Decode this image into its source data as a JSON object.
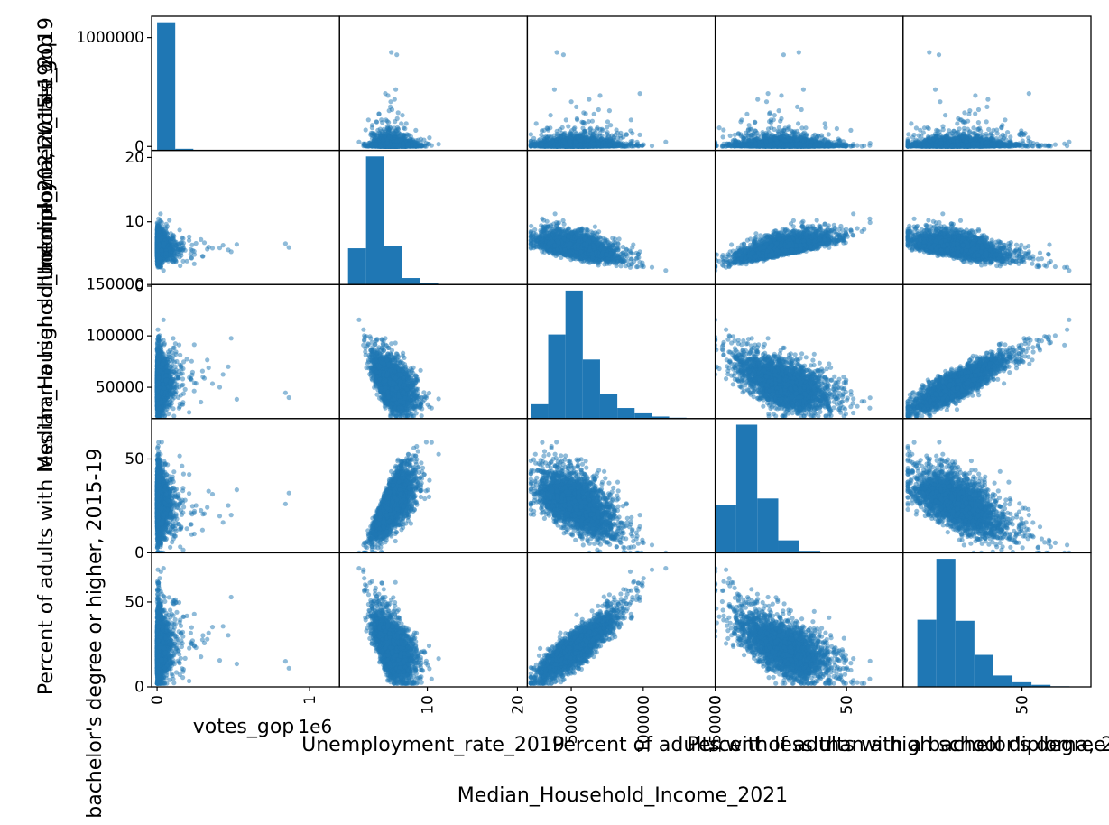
{
  "chart_data": {
    "type": "scatter",
    "subtype": "scatter-matrix",
    "variables": [
      "votes_gop",
      "Unemployment_rate_2019",
      "Median_Household_Income_2021",
      "Percent of adults with less than a high school diploma, 2015-19",
      "Percent of adults with a bachelor's degree or higher, 2015-19"
    ],
    "axis_labels": [
      "votes_gop",
      "Unemployment_rate_2019",
      "Median_Household_Income_2021",
      "Percent of adults with less than a high school diploma, 2015-19",
      "Percent of adults with a bachelor's degree or higher, 2015-19"
    ],
    "ranges": [
      [
        -36000,
        1196000
      ],
      [
        0.25,
        21.1
      ],
      [
        19500,
        150000
      ],
      [
        0,
        71.5
      ],
      [
        0,
        79
      ]
    ],
    "yticks": [
      {
        "values": [
          0,
          1000000
        ],
        "labels": [
          "0",
          "1000000"
        ]
      },
      {
        "values": [
          0,
          10,
          20
        ],
        "labels": [
          "0",
          "10",
          "20"
        ]
      },
      {
        "values": [
          50000,
          100000,
          150000
        ],
        "labels": [
          "50000",
          "100000",
          "150000"
        ]
      },
      {
        "values": [
          0,
          50
        ],
        "labels": [
          "0",
          "50"
        ]
      },
      {
        "values": [
          0,
          50
        ],
        "labels": [
          "0",
          "50"
        ]
      }
    ],
    "xticks": [
      {
        "values": [
          0,
          1000000
        ],
        "labels": [
          "0",
          "1"
        ]
      },
      {
        "values": [
          10,
          20
        ],
        "labels": [
          "10",
          "20"
        ]
      },
      {
        "values": [
          50000,
          100000,
          150000
        ],
        "labels": [
          "50000",
          "100000",
          "150000"
        ]
      },
      {
        "values": [
          0,
          50
        ],
        "labels": [
          "0",
          "50"
        ]
      },
      {
        "values": [
          50
        ],
        "labels": [
          "50"
        ]
      }
    ],
    "x_offset_text": "1e6",
    "histograms": [
      {
        "edges": [
          0,
          119000,
          238000
        ],
        "counts": [
          3060,
          38
        ]
      },
      {
        "edges": [
          1.2,
          3.2,
          5.2,
          7.2,
          9.2,
          11.2,
          13.2
        ],
        "counts": [
          560,
          1980,
          590,
          100,
          25,
          5
        ]
      },
      {
        "edges": [
          22000,
          34000,
          46000,
          58000,
          70000,
          82000,
          94000,
          106000,
          118000,
          130000
        ],
        "counts": [
          190,
          1110,
          1690,
          780,
          320,
          140,
          70,
          28,
          12
        ]
      },
      {
        "edges": [
          0,
          8,
          16,
          24,
          32,
          40,
          48
        ],
        "counts": [
          730,
          1960,
          830,
          190,
          30,
          6
        ]
      },
      {
        "edges": [
          6,
          14,
          22,
          30,
          38,
          46,
          54,
          62,
          70
        ],
        "counts": [
          650,
          1240,
          640,
          310,
          110,
          45,
          20,
          6
        ]
      }
    ],
    "sample_count": 3000,
    "marker_color": "#1f77b4",
    "marker_alpha": 0.5,
    "grid": false,
    "legend": "none"
  }
}
